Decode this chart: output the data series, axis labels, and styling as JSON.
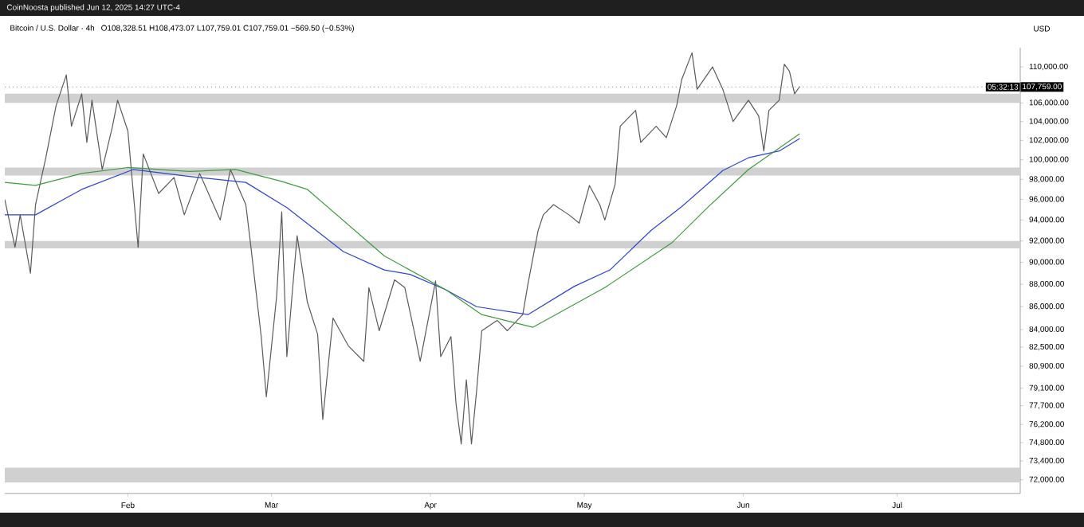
{
  "chart_data": {
    "type": "line",
    "title": "Bitcoin / U.S. Dollar · 4h",
    "subtitle": "O108,328.51 H108,473.07 L107,759.01 C107,759.01 −569.50 (−0.53%)",
    "ylabel": "USD",
    "annotations": [
      "CoinNoosta published Jun 12, 2025 14:27 UTC-4",
      "05:32:13"
    ],
    "log": "y",
    "marker": "none",
    "line_style": "solid",
    "xlim": [
      "2025-01-08",
      "2025-07-25"
    ],
    "xticks": [
      {
        "value": "2025-02-01",
        "label": "Feb"
      },
      {
        "value": "2025-03-01",
        "label": "Mar"
      },
      {
        "value": "2025-04-01",
        "label": "Apr"
      },
      {
        "value": "2025-05-01",
        "label": "May"
      },
      {
        "value": "2025-06-01",
        "label": "Jun"
      },
      {
        "value": "2025-07-01",
        "label": "Jul"
      }
    ],
    "ylim": [
      71000,
      112200
    ],
    "yticks": [
      {
        "value": 110000,
        "label": "110,000.00"
      },
      {
        "value": 106000,
        "label": "106,000.00"
      },
      {
        "value": 104000,
        "label": "104,000.00"
      },
      {
        "value": 102000,
        "label": "102,000.00"
      },
      {
        "value": 100000,
        "label": "100,000.00"
      },
      {
        "value": 98000,
        "label": "98,000.00"
      },
      {
        "value": 96000,
        "label": "96,000.00"
      },
      {
        "value": 94000,
        "label": "94,000.00"
      },
      {
        "value": 92000,
        "label": "92,000.00"
      },
      {
        "value": 90000,
        "label": "90,000.00"
      },
      {
        "value": 88000,
        "label": "88,000.00"
      },
      {
        "value": 86000,
        "label": "86,000.00"
      },
      {
        "value": 84000,
        "label": "84,000.00"
      },
      {
        "value": 82500,
        "label": "82,500.00"
      },
      {
        "value": 80900,
        "label": "80,900.00"
      },
      {
        "value": 79100,
        "label": "79,100.00"
      },
      {
        "value": 77700,
        "label": "77,700.00"
      },
      {
        "value": 76200,
        "label": "76,200.00"
      },
      {
        "value": 74800,
        "label": "74,800.00"
      },
      {
        "value": 73400,
        "label": "73,400.00"
      },
      {
        "value": 72000,
        "label": "72,000.00"
      }
    ],
    "bands": [
      {
        "axis": "y",
        "from": 106000,
        "to": 107000,
        "color": "#d0d0d0"
      },
      {
        "axis": "y",
        "from": 98400,
        "to": 99200,
        "color": "#d0d0d0"
      },
      {
        "axis": "y",
        "from": 91300,
        "to": 92000,
        "color": "#d0d0d0"
      },
      {
        "axis": "y",
        "from": 71800,
        "to": 72900,
        "color": "#d0d0d0"
      }
    ],
    "ref_lines": [
      {
        "axis": "y",
        "value": 107759,
        "label": "107,759.00",
        "line_style": "dotted",
        "color": "#888888"
      }
    ],
    "series": [
      {
        "color": "#5a5a5a",
        "x": [
          "2025-01-08",
          "2025-01-10",
          "2025-01-11",
          "2025-01-13",
          "2025-01-14",
          "2025-01-16",
          "2025-01-18",
          "2025-01-20",
          "2025-01-21",
          "2025-01-23",
          "2025-01-24",
          "2025-01-25",
          "2025-01-27",
          "2025-01-29",
          "2025-01-30",
          "2025-02-01",
          "2025-02-03",
          "2025-02-04",
          "2025-02-07",
          "2025-02-10",
          "2025-02-12",
          "2025-02-15",
          "2025-02-19",
          "2025-02-21",
          "2025-02-24",
          "2025-02-25",
          "2025-02-26",
          "2025-02-27",
          "2025-02-28",
          "2025-03-02",
          "2025-03-03",
          "2025-03-04",
          "2025-03-06",
          "2025-03-08",
          "2025-03-10",
          "2025-03-11",
          "2025-03-13",
          "2025-03-16",
          "2025-03-19",
          "2025-03-20",
          "2025-03-22",
          "2025-03-25",
          "2025-03-27",
          "2025-03-29",
          "2025-03-30",
          "2025-04-02",
          "2025-04-03",
          "2025-04-05",
          "2025-04-06",
          "2025-04-07",
          "2025-04-08",
          "2025-04-09",
          "2025-04-10",
          "2025-04-11",
          "2025-04-14",
          "2025-04-16",
          "2025-04-19",
          "2025-04-20",
          "2025-04-22",
          "2025-04-23",
          "2025-04-25",
          "2025-04-28",
          "2025-04-30",
          "2025-05-02",
          "2025-05-04",
          "2025-05-05",
          "2025-05-07",
          "2025-05-08",
          "2025-05-11",
          "2025-05-12",
          "2025-05-15",
          "2025-05-17",
          "2025-05-19",
          "2025-05-20",
          "2025-05-22",
          "2025-05-23",
          "2025-05-26",
          "2025-05-28",
          "2025-05-30",
          "2025-06-02",
          "2025-06-04",
          "2025-06-05",
          "2025-06-06",
          "2025-06-08",
          "2025-06-09",
          "2025-06-10",
          "2025-06-11",
          "2025-06-12"
        ],
        "values": [
          96000,
          91400,
          94500,
          89000,
          95500,
          100200,
          105700,
          109100,
          103500,
          107000,
          101800,
          106300,
          99000,
          103500,
          106300,
          103000,
          91400,
          100600,
          96600,
          98200,
          94500,
          98600,
          94000,
          99000,
          95500,
          91400,
          87300,
          83400,
          78400,
          86900,
          94800,
          81700,
          92500,
          86400,
          83600,
          76600,
          85000,
          82600,
          81300,
          87700,
          83900,
          88400,
          87700,
          83500,
          81300,
          88300,
          81700,
          83400,
          77800,
          74700,
          79800,
          74700,
          78900,
          83900,
          84800,
          83900,
          85300,
          88000,
          93000,
          94500,
          95500,
          94500,
          93700,
          97400,
          95500,
          94000,
          97500,
          103500,
          105200,
          101800,
          103500,
          102300,
          105700,
          108600,
          111600,
          107500,
          110000,
          107500,
          104000,
          106300,
          104600,
          100900,
          105200,
          106300,
          110300,
          109500,
          107000,
          107800
        ]
      },
      {
        "color": "#2d44d4",
        "x": [
          "2025-01-08",
          "2025-01-14",
          "2025-01-23",
          "2025-02-02",
          "2025-02-13",
          "2025-02-24",
          "2025-03-04",
          "2025-03-15",
          "2025-03-23",
          "2025-03-28",
          "2025-04-04",
          "2025-04-10",
          "2025-04-20",
          "2025-04-29",
          "2025-05-06",
          "2025-05-14",
          "2025-05-20",
          "2025-05-28",
          "2025-06-02",
          "2025-06-08",
          "2025-06-12"
        ],
        "values": [
          94500,
          94500,
          97000,
          99000,
          98300,
          97700,
          95200,
          91000,
          89300,
          88900,
          87500,
          86000,
          85300,
          87800,
          89300,
          93000,
          95300,
          98900,
          100200,
          100900,
          102200
        ]
      },
      {
        "color": "#3f9c3f",
        "x": [
          "2025-01-08",
          "2025-01-14",
          "2025-01-23",
          "2025-02-01",
          "2025-02-13",
          "2025-02-22",
          "2025-03-03",
          "2025-03-08",
          "2025-03-23",
          "2025-04-04",
          "2025-04-11",
          "2025-04-21",
          "2025-05-05",
          "2025-05-18",
          "2025-05-25",
          "2025-06-02",
          "2025-06-08",
          "2025-06-12"
        ],
        "values": [
          97700,
          97400,
          98600,
          99200,
          98800,
          99000,
          97800,
          97000,
          90600,
          87500,
          85300,
          84200,
          87700,
          91800,
          95200,
          99000,
          101200,
          102700
        ]
      }
    ]
  }
}
